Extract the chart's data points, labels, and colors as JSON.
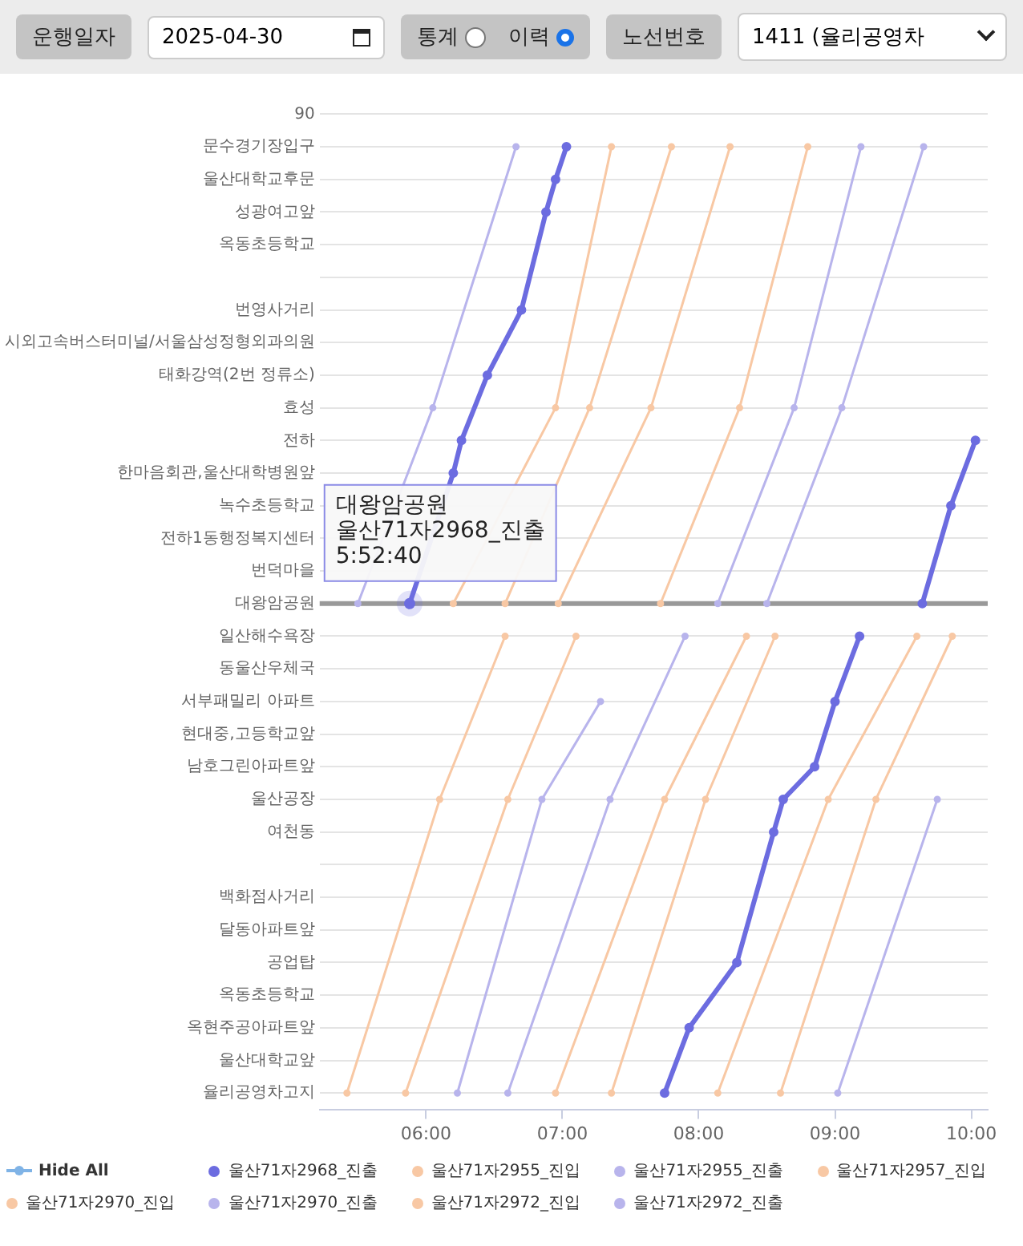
{
  "chart_data": {
    "type": "line",
    "orientation": "horizontal",
    "categories": [
      "90",
      "문수경기장입구",
      "울산대학교후문",
      "성광여고앞",
      "옥동초등학교",
      null,
      "번영사거리",
      "시외고속버스터미널/서울삼성정형외과의원",
      "태화강역(2번 정류소)",
      "효성",
      "전하",
      "한마음회관,울산대학병원앞",
      "녹수초등학교",
      "전하1동행정복지센터",
      "번덕마을",
      "대왕암공원",
      "일산해수욕장",
      "동울산우체국",
      "서부패밀리 아파트",
      "현대중,고등학교앞",
      "남호그린아파트앞",
      "울산공장",
      "여천동",
      null,
      "백화점사거리",
      "달동아파트앞",
      "공업탑",
      "옥동초등학교",
      "옥현주공아파트앞",
      "울산대학교앞",
      "율리공영차고지"
    ],
    "series": [
      {
        "name": "울산71자2968_진출",
        "color": "#6c6ce0",
        "values": [
          null,
          7.03,
          6.95,
          6.88,
          null,
          null,
          6.7,
          null,
          6.45,
          null,
          6.26,
          6.2,
          null,
          null,
          null,
          5.88,
          null,
          null,
          null,
          null,
          null,
          null,
          null,
          null,
          null,
          null,
          null,
          null,
          null,
          null,
          null
        ]
      },
      {
        "color": "#6c6ce0",
        "values": [
          null,
          null,
          null,
          null,
          null,
          null,
          null,
          null,
          null,
          null,
          null,
          null,
          null,
          null,
          null,
          null,
          9.18,
          null,
          9.0,
          null,
          8.85,
          8.62,
          8.55,
          null,
          null,
          null,
          8.28,
          null,
          7.93,
          null,
          7.75
        ]
      },
      {
        "color": "#6c6ce0",
        "values": [
          null,
          null,
          null,
          null,
          null,
          null,
          null,
          null,
          null,
          null,
          10.03,
          null,
          9.85,
          null,
          null,
          9.64,
          null,
          null,
          null,
          null,
          null,
          null,
          null,
          null,
          null,
          null,
          null,
          null,
          null,
          null,
          null
        ]
      },
      {
        "name": "울산71자2955_진입",
        "color": "#f8c8a4",
        "values": [
          null,
          null,
          null,
          null,
          null,
          null,
          null,
          null,
          null,
          null,
          null,
          null,
          null,
          null,
          null,
          null,
          6.58,
          null,
          null,
          null,
          null,
          6.1,
          null,
          null,
          null,
          null,
          null,
          null,
          null,
          null,
          5.42
        ]
      },
      {
        "color": "#f8c8a4",
        "values": [
          null,
          7.8,
          null,
          null,
          null,
          null,
          null,
          null,
          null,
          7.2,
          null,
          null,
          null,
          null,
          null,
          6.58,
          null,
          null,
          null,
          null,
          null,
          null,
          null,
          null,
          null,
          null,
          null,
          null,
          null,
          null,
          null
        ]
      },
      {
        "color": "#f8c8a4",
        "values": [
          null,
          null,
          null,
          null,
          null,
          null,
          null,
          null,
          null,
          null,
          null,
          null,
          null,
          null,
          null,
          null,
          8.56,
          null,
          null,
          null,
          null,
          8.05,
          null,
          null,
          null,
          null,
          null,
          null,
          null,
          null,
          7.36
        ]
      },
      {
        "name": "울산71자2955_진출",
        "color": "#b8b4ec",
        "values": [
          null,
          6.66,
          null,
          null,
          null,
          null,
          null,
          null,
          null,
          6.05,
          null,
          null,
          null,
          null,
          null,
          5.5,
          null,
          null,
          null,
          null,
          null,
          null,
          null,
          null,
          null,
          null,
          null,
          null,
          null,
          null,
          null
        ]
      },
      {
        "color": "#b8b4ec",
        "values": [
          null,
          null,
          null,
          null,
          null,
          null,
          null,
          null,
          null,
          null,
          null,
          null,
          null,
          null,
          null,
          null,
          7.9,
          null,
          null,
          null,
          null,
          7.35,
          null,
          null,
          null,
          null,
          null,
          null,
          null,
          null,
          6.6
        ]
      },
      {
        "name": "울산71자2957_진입",
        "color": "#f8c8a4",
        "values": [
          null,
          null,
          null,
          null,
          null,
          null,
          null,
          null,
          null,
          null,
          null,
          null,
          null,
          null,
          null,
          null,
          7.1,
          null,
          null,
          null,
          null,
          6.6,
          null,
          null,
          null,
          null,
          null,
          null,
          null,
          null,
          5.85
        ]
      },
      {
        "color": "#f8c8a4",
        "values": [
          null,
          8.8,
          null,
          null,
          null,
          null,
          null,
          null,
          null,
          8.3,
          null,
          null,
          null,
          null,
          null,
          7.72,
          null,
          null,
          null,
          null,
          null,
          null,
          null,
          null,
          null,
          null,
          null,
          null,
          null,
          null,
          null
        ]
      },
      {
        "color": "#f8c8a4",
        "values": [
          null,
          null,
          null,
          null,
          null,
          null,
          null,
          null,
          null,
          null,
          null,
          null,
          null,
          null,
          null,
          null,
          9.86,
          null,
          null,
          null,
          null,
          9.3,
          null,
          null,
          null,
          null,
          null,
          null,
          null,
          null,
          8.6
        ]
      },
      {
        "name": "울산71자2970_진입",
        "color": "#f8c8a4",
        "values": [
          null,
          7.36,
          null,
          null,
          null,
          null,
          null,
          null,
          null,
          6.95,
          null,
          null,
          null,
          null,
          null,
          6.2,
          null,
          null,
          null,
          null,
          null,
          null,
          null,
          null,
          null,
          null,
          null,
          null,
          null,
          null,
          null
        ]
      },
      {
        "color": "#f8c8a4",
        "values": [
          null,
          null,
          null,
          null,
          null,
          null,
          null,
          null,
          null,
          null,
          null,
          null,
          null,
          null,
          null,
          null,
          8.35,
          null,
          null,
          null,
          null,
          7.75,
          null,
          null,
          null,
          null,
          null,
          null,
          null,
          null,
          6.95
        ]
      },
      {
        "name": "울산71자2970_진출",
        "color": "#b8b4ec",
        "values": [
          null,
          null,
          null,
          null,
          null,
          null,
          null,
          null,
          null,
          null,
          null,
          null,
          null,
          null,
          null,
          null,
          null,
          null,
          7.28,
          null,
          null,
          6.85,
          null,
          null,
          null,
          null,
          null,
          null,
          null,
          null,
          6.23
        ]
      },
      {
        "color": "#b8b4ec",
        "values": [
          null,
          9.19,
          null,
          null,
          null,
          null,
          null,
          null,
          null,
          8.7,
          null,
          null,
          null,
          null,
          null,
          8.14,
          null,
          null,
          null,
          null,
          null,
          null,
          null,
          null,
          null,
          null,
          null,
          null,
          null,
          null,
          null
        ]
      },
      {
        "name": "울산71자2972_진입",
        "color": "#f8c8a4",
        "values": [
          null,
          8.23,
          null,
          null,
          null,
          null,
          null,
          null,
          null,
          7.65,
          null,
          null,
          null,
          null,
          null,
          6.97,
          null,
          null,
          null,
          null,
          null,
          null,
          null,
          null,
          null,
          null,
          null,
          null,
          null,
          null,
          null
        ]
      },
      {
        "color": "#f8c8a4",
        "values": [
          null,
          null,
          null,
          null,
          null,
          null,
          null,
          null,
          null,
          null,
          null,
          null,
          null,
          null,
          null,
          null,
          9.6,
          null,
          null,
          null,
          null,
          8.95,
          null,
          null,
          null,
          null,
          null,
          null,
          null,
          null,
          8.14
        ]
      },
      {
        "name": "울산71자2972_진출",
        "color": "#b8b4ec",
        "values": [
          null,
          9.65,
          null,
          null,
          null,
          null,
          null,
          null,
          null,
          9.05,
          null,
          null,
          null,
          null,
          null,
          8.5,
          null,
          null,
          null,
          null,
          null,
          null,
          null,
          null,
          null,
          null,
          null,
          null,
          null,
          null,
          null
        ]
      },
      {
        "color": "#b8b4ec",
        "values": [
          null,
          null,
          null,
          null,
          null,
          null,
          null,
          null,
          null,
          null,
          null,
          null,
          null,
          null,
          null,
          null,
          null,
          null,
          null,
          null,
          null,
          9.75,
          null,
          null,
          null,
          null,
          null,
          null,
          null,
          null,
          9.02
        ]
      }
    ],
    "xlim": [
      5.22,
      10.12
    ],
    "xticks": [
      {
        "value": 6,
        "label": "06:00"
      },
      {
        "value": 7,
        "label": "07:00"
      },
      {
        "value": 8,
        "label": "08:00"
      },
      {
        "value": 9,
        "label": "09:00"
      },
      {
        "value": 10,
        "label": "10:00"
      }
    ],
    "ref_lines": [
      {
        "axis": "y",
        "value": "대왕암공원",
        "color": "#999999"
      }
    ],
    "annotations": [
      "운행일자",
      "2025-04-30",
      "통계",
      "이력",
      "노선번호",
      "1411 (율리공영차",
      "대왕암공원",
      "울산71자2968_진출",
      "5:52:40",
      "Hide All"
    ],
    "grid": "y",
    "legend": "bottom",
    "marker": "circle",
    "line_style": "solid"
  }
}
